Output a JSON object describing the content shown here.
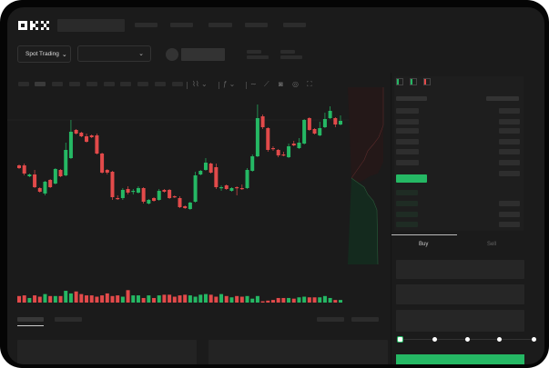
{
  "header": {
    "logo": "OKX"
  },
  "toolbar": {
    "market_select": "Spot Trading",
    "pair_select": ""
  },
  "chart_icons": [
    "candle-type-icon",
    "indicator-icon",
    "line-icon",
    "ruler-icon",
    "camera-icon",
    "settings-icon",
    "fullscreen-icon"
  ],
  "orderbook": {
    "view_icons": [
      "both-sides-icon",
      "buy-side-icon",
      "sell-side-icon"
    ]
  },
  "trade": {
    "tabs": [
      {
        "label": "Buy",
        "active": true
      },
      {
        "label": "Sell",
        "active": false
      }
    ],
    "slider_percent": 0
  },
  "colors": {
    "up": "#25b864",
    "down": "#e24a4a",
    "background": "#1b1b1b"
  },
  "chart_data": {
    "type": "candlestick",
    "candles": [
      [
        68,
        69,
        64,
        65
      ],
      [
        68,
        70,
        57,
        59
      ],
      [
        56,
        59,
        55,
        58
      ],
      [
        58,
        63,
        43,
        44
      ],
      [
        43,
        44,
        38,
        39
      ],
      [
        37,
        51,
        35,
        50
      ],
      [
        52,
        53,
        43,
        44
      ],
      [
        48,
        65,
        47,
        64
      ],
      [
        63,
        64,
        55,
        56
      ],
      [
        57,
        93,
        56,
        85
      ],
      [
        76,
        118,
        75,
        105
      ],
      [
        107,
        108,
        102,
        103
      ],
      [
        104,
        105,
        99,
        100
      ],
      [
        100,
        103,
        93,
        94
      ],
      [
        101,
        102,
        98,
        99
      ],
      [
        101,
        103,
        80,
        81
      ],
      [
        81,
        82,
        59,
        60
      ],
      [
        63,
        64,
        58,
        60
      ],
      [
        61,
        62,
        30,
        33
      ],
      [
        32,
        35,
        30,
        31
      ],
      [
        32,
        43,
        30,
        41
      ],
      [
        42,
        45,
        36,
        38
      ],
      [
        39,
        42,
        36,
        40
      ],
      [
        38,
        45,
        37,
        43
      ],
      [
        43,
        44,
        26,
        28
      ],
      [
        26,
        31,
        25,
        30
      ],
      [
        32,
        33,
        28,
        29
      ],
      [
        30,
        42,
        29,
        40
      ],
      [
        41,
        42,
        38,
        39
      ],
      [
        41,
        42,
        31,
        32
      ],
      [
        34,
        35,
        32,
        33
      ],
      [
        32,
        34,
        21,
        22
      ],
      [
        23,
        24,
        20,
        21
      ],
      [
        20,
        28,
        19,
        27
      ],
      [
        28,
        61,
        27,
        57
      ],
      [
        58,
        63,
        57,
        62
      ],
      [
        63,
        76,
        62,
        71
      ],
      [
        70,
        71,
        59,
        60
      ],
      [
        66,
        70,
        42,
        44
      ],
      [
        43,
        46,
        40,
        44
      ],
      [
        46,
        47,
        41,
        42
      ],
      [
        40,
        44,
        39,
        43
      ],
      [
        44,
        45,
        35,
        43
      ],
      [
        43,
        47,
        41,
        42
      ],
      [
        43,
        65,
        42,
        63
      ],
      [
        62,
        80,
        61,
        78
      ],
      [
        78,
        135,
        77,
        120
      ],
      [
        122,
        124,
        108,
        110
      ],
      [
        109,
        110,
        83,
        85
      ],
      [
        87,
        89,
        84,
        86
      ],
      [
        85,
        86,
        77,
        79
      ],
      [
        80,
        83,
        78,
        79
      ],
      [
        77,
        92,
        76,
        89
      ],
      [
        92,
        95,
        89,
        90
      ],
      [
        87,
        98,
        86,
        93
      ],
      [
        92,
        119,
        91,
        118
      ],
      [
        120,
        121,
        106,
        107
      ],
      [
        108,
        109,
        102,
        103
      ],
      [
        101,
        116,
        100,
        109
      ],
      [
        110,
        126,
        109,
        119
      ],
      [
        120,
        133,
        119,
        128
      ],
      [
        120,
        121,
        110,
        113
      ],
      [
        113,
        123,
        112,
        117
      ]
    ],
    "volume": [
      10,
      11,
      7,
      11,
      9,
      13,
      10,
      10,
      10,
      18,
      14,
      17,
      13,
      11,
      11,
      9,
      11,
      14,
      10,
      11,
      9,
      19,
      11,
      11,
      7,
      11,
      7,
      11,
      12,
      12,
      9,
      11,
      12,
      11,
      9,
      12,
      13,
      12,
      9,
      13,
      10,
      8,
      10,
      9,
      10,
      6,
      10,
      2,
      3,
      4,
      7,
      7,
      7,
      6,
      8,
      9,
      8,
      8,
      8,
      10,
      7,
      4,
      4
    ],
    "grid": false
  }
}
